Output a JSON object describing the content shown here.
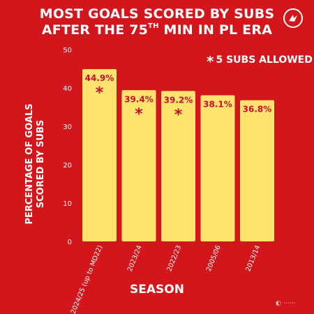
{
  "title": {
    "line1": "MOST GOALS SCORED BY SUBS",
    "line2_pre": "AFTER THE 75",
    "line2_sup": "TH",
    "line2_post": " MIN IN PL ERA"
  },
  "note": {
    "star": "*",
    "text": "5 SUBS ALLOWED"
  },
  "logo_icon": "club-crest-icon",
  "colors": {
    "background": "#d3161b",
    "bar": "#ffe36e",
    "bar_text": "#c8102e",
    "text": "#ffffff"
  },
  "chart_data": {
    "type": "bar",
    "title": "MOST GOALS SCORED BY SUBS AFTER THE 75TH MIN IN PL ERA",
    "xlabel": "SEASON",
    "ylabel_lines": [
      "PERCENTAGE OF GOALS",
      "SCORED BY SUBS"
    ],
    "ylim": [
      0,
      50
    ],
    "yticks": [
      0,
      10,
      20,
      30,
      40,
      50
    ],
    "categories": [
      "2024/25 (up to MD22)",
      "2023/24",
      "2022/23",
      "2005/06",
      "2013/14"
    ],
    "values": [
      44.9,
      39.4,
      39.2,
      38.1,
      36.8
    ],
    "data_labels": [
      "44.9%",
      "39.4%",
      "39.2%",
      "38.1%",
      "36.8%"
    ],
    "five_subs_allowed": [
      true,
      true,
      true,
      false,
      false
    ],
    "grid": false
  }
}
